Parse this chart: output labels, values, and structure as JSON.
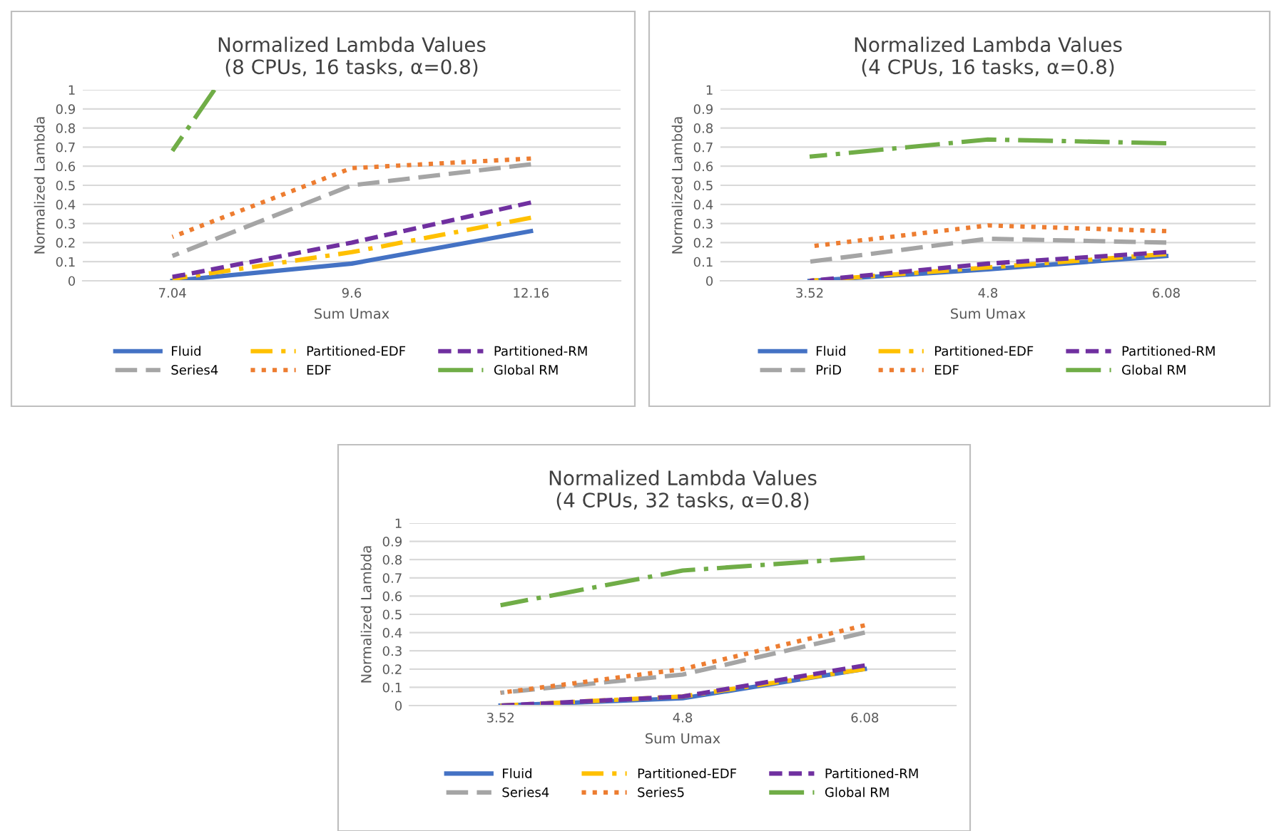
{
  "chart_data": [
    {
      "type": "line",
      "title": "Normalized Lambda Values\n(8 CPUs, 16 tasks, α=0.8)",
      "xlabel": "Sum Umax",
      "ylabel": "Normalized Lambda",
      "x": [
        7.04,
        9.6,
        12.16
      ],
      "xlim": [
        5.76,
        13.44
      ],
      "xticks": [
        7.04,
        9.6,
        12.16
      ],
      "ylim": [
        0,
        1
      ],
      "yticks": [
        0,
        0.1,
        0.2,
        0.3,
        0.4,
        0.5,
        0.6,
        0.7,
        0.8,
        0.9,
        1
      ],
      "grid": "y",
      "legend": "bottom",
      "series": [
        {
          "name": "Fluid",
          "color": "#4472c4",
          "line_style": "solid",
          "values": [
            0,
            0.09,
            0.26
          ]
        },
        {
          "name": "Partitioned-EDF",
          "color": "#ffc000",
          "line_style": "dashdot",
          "values": [
            0.01,
            0.15,
            0.33
          ]
        },
        {
          "name": "Partitioned-RM",
          "color": "#7030a0",
          "line_style": "dashed",
          "values": [
            0.02,
            0.2,
            0.41
          ]
        },
        {
          "name": "Series4",
          "color": "#a5a5a5",
          "line_style": "longdash",
          "values": [
            0.13,
            0.5,
            0.61
          ]
        },
        {
          "name": "EDF",
          "color": "#ed7d31",
          "line_style": "dotted",
          "values": [
            0.23,
            0.59,
            0.64
          ]
        },
        {
          "name": "Global RM",
          "color": "#70ad47",
          "line_style": "longdashdot",
          "x": [
            7.04,
            7.64
          ],
          "values": [
            0.68,
            1
          ]
        }
      ]
    },
    {
      "type": "line",
      "title": "Normalized Lambda Values\n(4 CPUs, 16 tasks, α=0.8)",
      "xlabel": "Sum Umax",
      "ylabel": "Normalized Lambda",
      "categories": [
        "3.52",
        "4.8",
        "6.08"
      ],
      "ylim": [
        0,
        1
      ],
      "yticks": [
        0,
        0.1,
        0.2,
        0.3,
        0.4,
        0.5,
        0.6,
        0.7,
        0.8,
        0.9,
        1
      ],
      "grid": "y",
      "legend": "bottom",
      "series": [
        {
          "name": "Fluid",
          "color": "#4472c4",
          "line_style": "solid",
          "values": [
            0,
            0.06,
            0.13
          ]
        },
        {
          "name": "Partitioned-EDF",
          "color": "#ffc000",
          "line_style": "dashdot",
          "values": [
            0,
            0.07,
            0.14
          ]
        },
        {
          "name": "Partitioned-RM",
          "color": "#7030a0",
          "line_style": "dashed",
          "values": [
            0,
            0.09,
            0.15
          ]
        },
        {
          "name": "PriD",
          "color": "#a5a5a5",
          "line_style": "longdash",
          "values": [
            0.1,
            0.22,
            0.2
          ]
        },
        {
          "name": "EDF",
          "color": "#ed7d31",
          "line_style": "dotted",
          "values": [
            0.18,
            0.29,
            0.26
          ]
        },
        {
          "name": "Global RM",
          "color": "#70ad47",
          "line_style": "longdashdot",
          "values": [
            0.65,
            0.74,
            0.72
          ]
        }
      ]
    },
    {
      "type": "line",
      "title": "Normalized Lambda Values\n(4 CPUs, 32 tasks, α=0.8)",
      "xlabel": "Sum Umax",
      "ylabel": "Normalized Lambda",
      "categories": [
        "3.52",
        "4.8",
        "6.08"
      ],
      "ylim": [
        0,
        1
      ],
      "yticks": [
        0,
        0.1,
        0.2,
        0.3,
        0.4,
        0.5,
        0.6,
        0.7,
        0.8,
        0.9,
        1
      ],
      "grid": "y",
      "legend": "bottom",
      "series": [
        {
          "name": "Fluid",
          "color": "#4472c4",
          "line_style": "solid",
          "values": [
            0,
            0.04,
            0.2
          ]
        },
        {
          "name": "Partitioned-EDF",
          "color": "#ffc000",
          "line_style": "dashdot",
          "values": [
            0,
            0.05,
            0.2
          ]
        },
        {
          "name": "Partitioned-RM",
          "color": "#7030a0",
          "line_style": "dashed",
          "values": [
            0,
            0.05,
            0.22
          ]
        },
        {
          "name": "Series4",
          "color": "#a5a5a5",
          "line_style": "longdash",
          "values": [
            0.07,
            0.17,
            0.4
          ]
        },
        {
          "name": "Series5",
          "color": "#ed7d31",
          "line_style": "dotted",
          "values": [
            0.07,
            0.2,
            0.44
          ]
        },
        {
          "name": "Global RM",
          "color": "#70ad47",
          "line_style": "longdashdot",
          "values": [
            0.55,
            0.74,
            0.81
          ]
        }
      ]
    }
  ]
}
